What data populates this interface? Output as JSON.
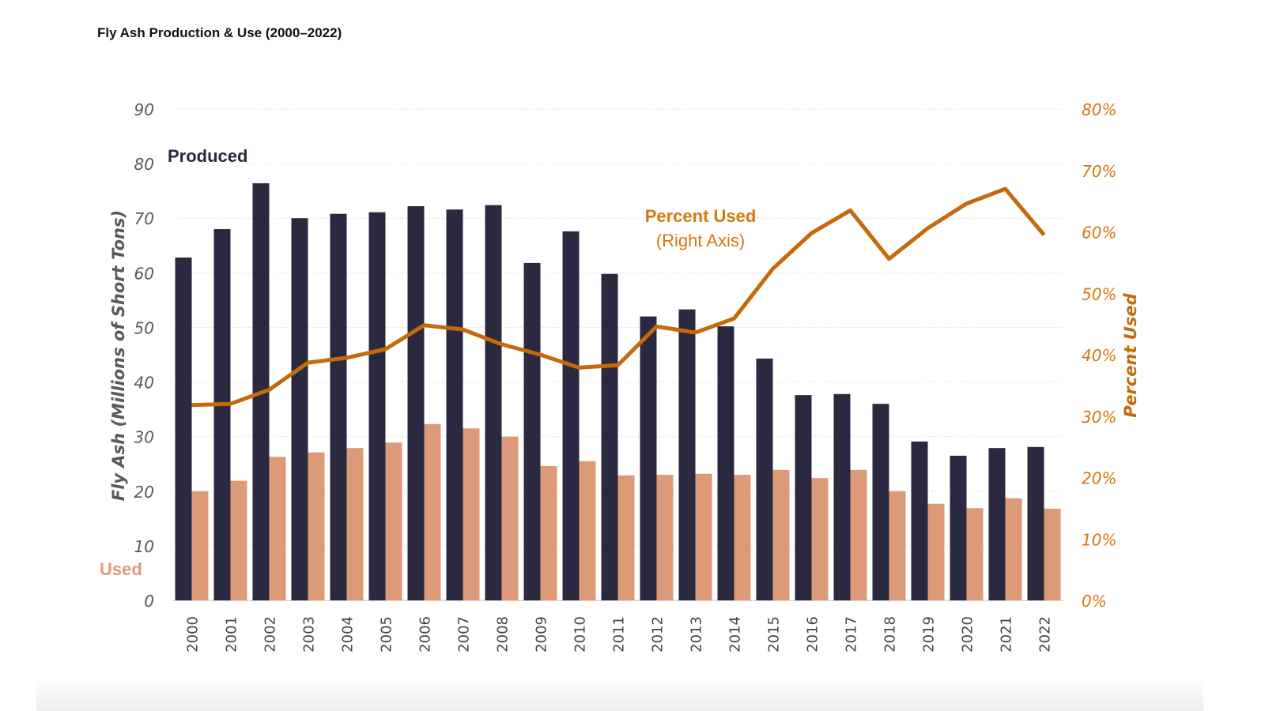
{
  "title": "Fly Ash Production & Use (2000–2022)",
  "chart_data": {
    "type": "bar",
    "title": "Fly Ash Production & Use (2000–2022)",
    "categories": [
      "2000",
      "2001",
      "2002",
      "2003",
      "2004",
      "2005",
      "2006",
      "2007",
      "2008",
      "2009",
      "2010",
      "2011",
      "2012",
      "2013",
      "2014",
      "2015",
      "2016",
      "2017",
      "2018",
      "2019",
      "2020",
      "2021",
      "2022"
    ],
    "ylabel": "Fly Ash (Millions of Short Tons)",
    "ylim": [
      0,
      90
    ],
    "yticks": [
      "0",
      "10",
      "20",
      "30",
      "40",
      "50",
      "60",
      "70",
      "80",
      "90"
    ],
    "y2label": "Percent Used",
    "y2lim": [
      0,
      80
    ],
    "y2ticks": [
      "0%",
      "10%",
      "20%",
      "30%",
      "40%",
      "50%",
      "60%",
      "70%",
      "80%"
    ],
    "grid": true,
    "series": [
      {
        "name": "Produced",
        "type": "bar",
        "axis": "left",
        "color": "#2b2940",
        "values": [
          62.8,
          68.0,
          76.4,
          70.0,
          70.8,
          71.1,
          72.2,
          71.6,
          72.4,
          61.8,
          67.6,
          59.8,
          52.0,
          53.3,
          50.2,
          44.3,
          37.6,
          37.8,
          36.0,
          29.1,
          26.5,
          27.9,
          28.1
        ]
      },
      {
        "name": "Used",
        "type": "bar",
        "axis": "left",
        "color": "#dc9a78",
        "values": [
          20.0,
          21.9,
          26.3,
          27.1,
          27.9,
          28.9,
          32.3,
          31.5,
          30.0,
          24.6,
          25.5,
          22.9,
          23.0,
          23.2,
          23.0,
          23.9,
          22.4,
          23.9,
          20.0,
          17.7,
          16.9,
          18.7,
          16.8
        ]
      },
      {
        "name": "Percent Used",
        "type": "line",
        "axis": "right",
        "color": "#c56a0c",
        "values": [
          31.8,
          32.0,
          34.3,
          38.7,
          39.5,
          40.9,
          44.8,
          44.1,
          41.7,
          40.0,
          37.9,
          38.3,
          44.6,
          43.6,
          45.9,
          54.0,
          59.8,
          63.5,
          55.6,
          60.6,
          64.6,
          67.0,
          59.5
        ]
      }
    ],
    "annotations": {
      "produced": "Produced",
      "used": "Used",
      "percent_used": "Percent Used",
      "percent_used_sub": "(Right Axis)"
    }
  }
}
